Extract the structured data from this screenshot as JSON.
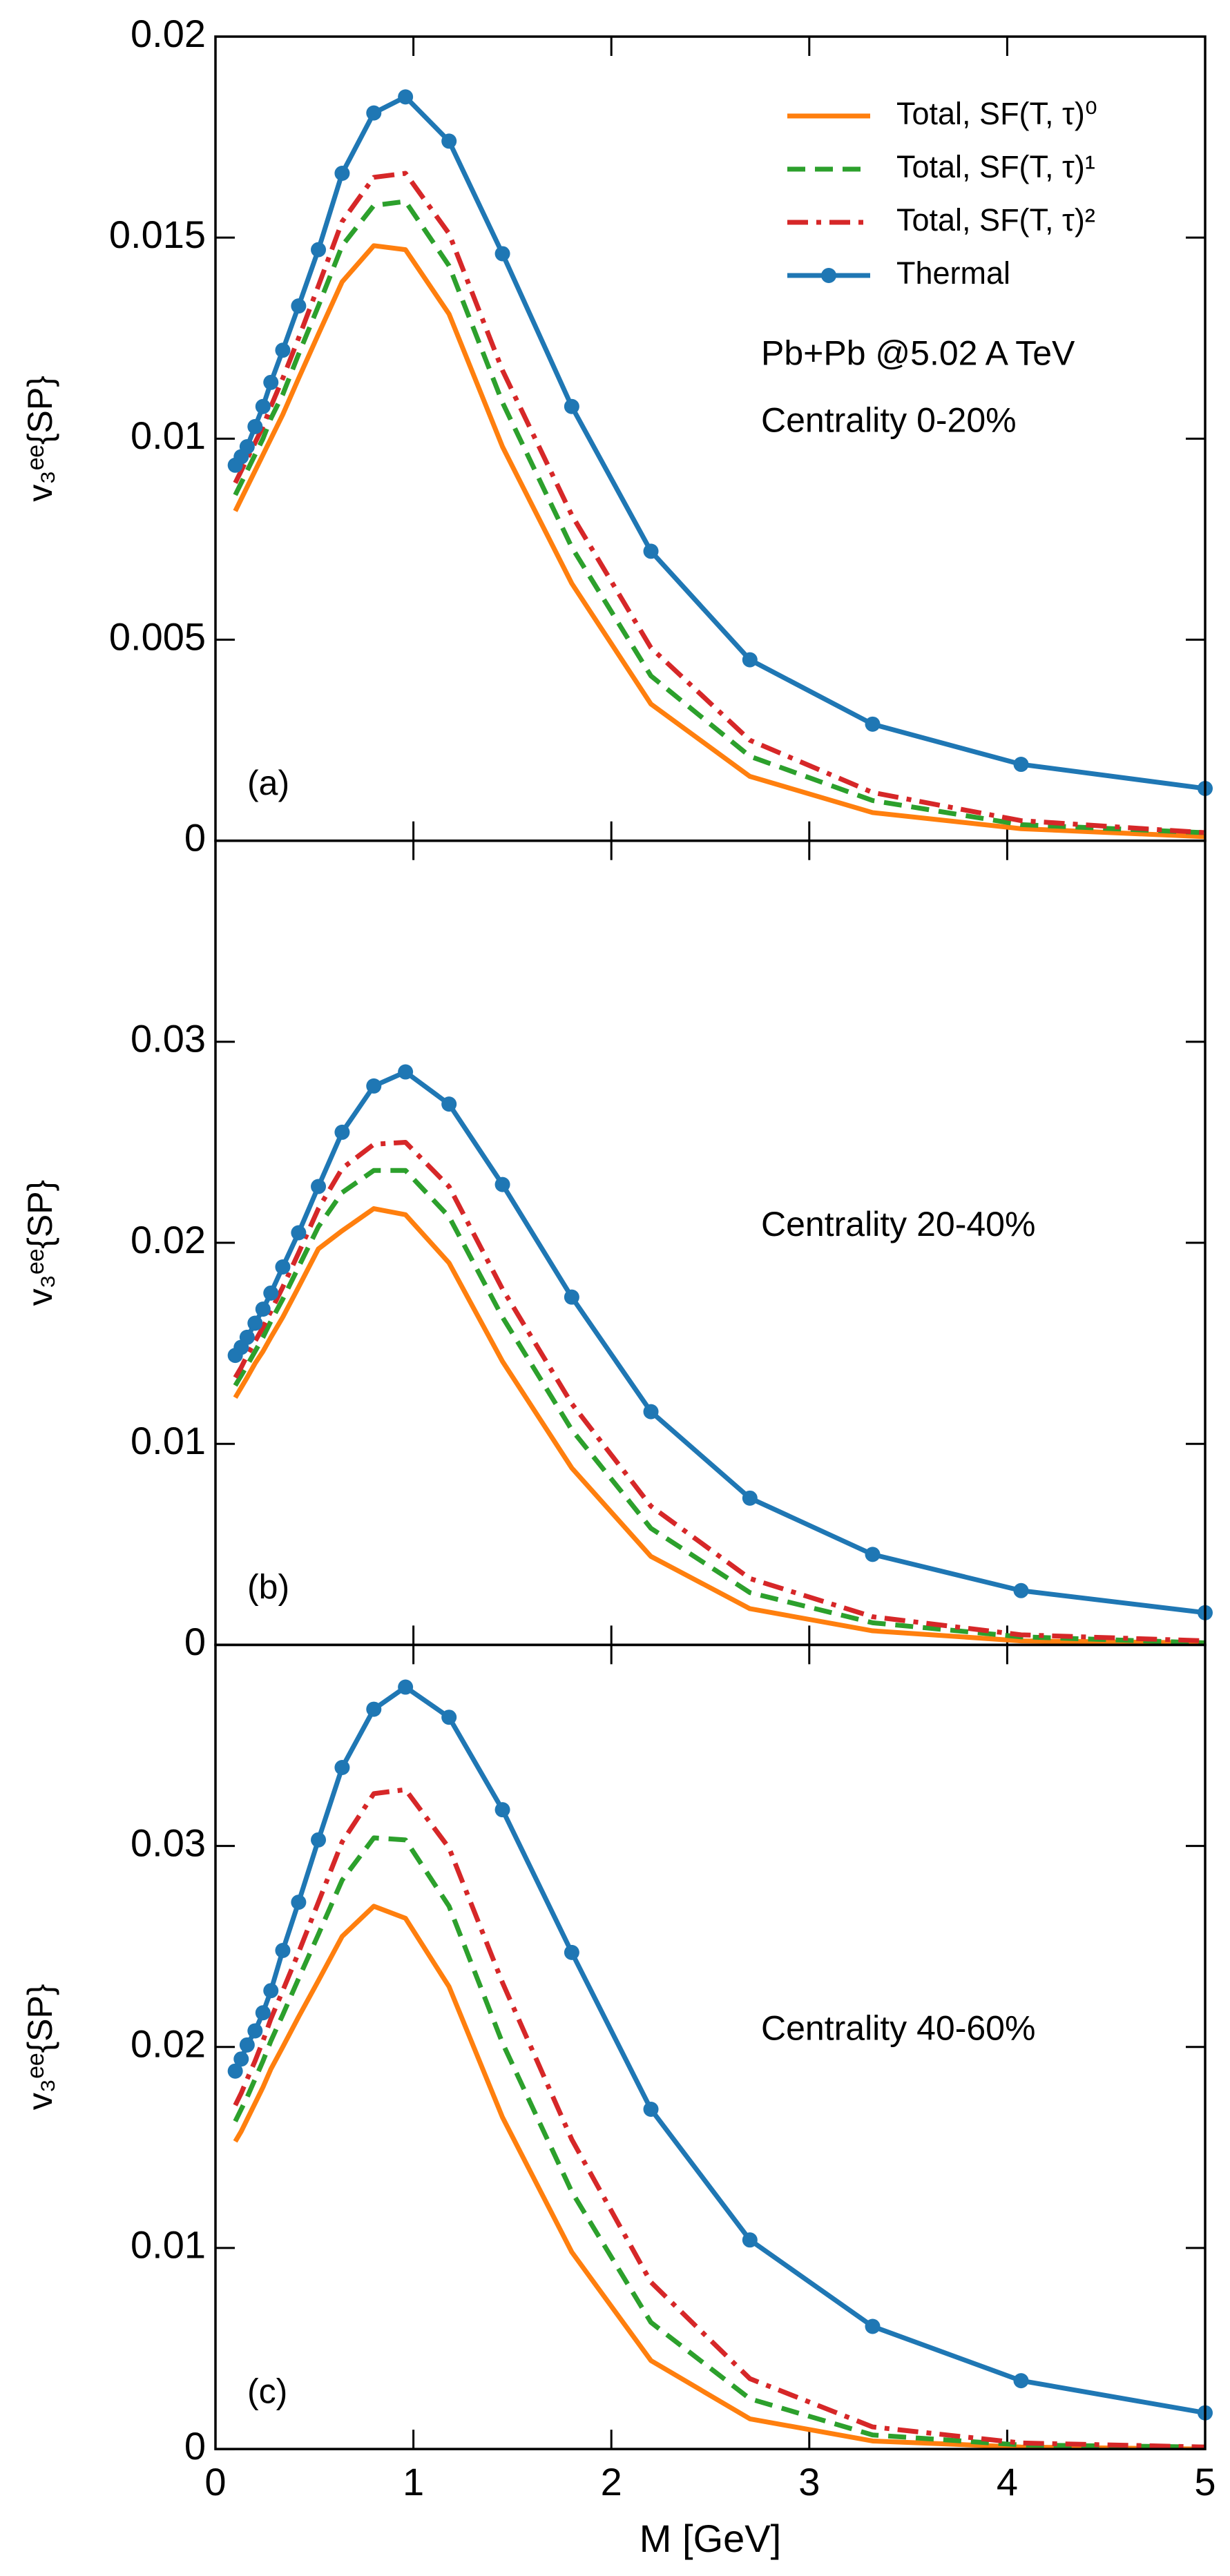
{
  "chart_data": [
    {
      "type": "line",
      "ylabel": "v₃ᵉᵉ{SP}",
      "annotations": [
        "Pb+Pb @5.02 A TeV",
        "Centrality 0-20%"
      ],
      "panel_label": "(a)",
      "x": [
        0.1,
        0.13,
        0.16,
        0.2,
        0.24,
        0.28,
        0.34,
        0.42,
        0.52,
        0.64,
        0.8,
        0.96,
        1.18,
        1.45,
        1.8,
        2.2,
        2.7,
        3.32,
        4.07,
        5.0
      ],
      "xlim": [
        0,
        5
      ],
      "xticks": [
        0,
        1,
        2,
        3,
        4,
        5
      ],
      "ylim": [
        0,
        0.02
      ],
      "yticks": [
        0,
        0.005,
        0.01,
        0.015,
        0.02
      ],
      "series": [
        {
          "name": "Total, SF(T, τ)⁰",
          "color": "#ff7f0e",
          "linestyle": "solid",
          "values": [
            0.0082,
            0.0085,
            0.0088,
            0.0092,
            0.0096,
            0.01,
            0.0106,
            0.0115,
            0.0126,
            0.0139,
            0.0148,
            0.0147,
            0.0131,
            0.0098,
            0.0064,
            0.0034,
            0.0016,
            0.0007,
            0.0003,
            0.0001
          ]
        },
        {
          "name": "Total, SF(T, τ)¹",
          "color": "#2ca02c",
          "linestyle": "dashed",
          "values": [
            0.0086,
            0.0089,
            0.0092,
            0.0096,
            0.01,
            0.0105,
            0.0111,
            0.0121,
            0.0133,
            0.0148,
            0.0158,
            0.0159,
            0.0143,
            0.0109,
            0.0073,
            0.0041,
            0.0021,
            0.001,
            0.0004,
            0.0002
          ]
        },
        {
          "name": "Total, SF(T, τ)²",
          "color": "#d62728",
          "linestyle": "dashdot",
          "values": [
            0.0089,
            0.0092,
            0.0095,
            0.0099,
            0.0103,
            0.0108,
            0.0115,
            0.0125,
            0.0138,
            0.0154,
            0.0165,
            0.0166,
            0.0151,
            0.0117,
            0.0081,
            0.0048,
            0.0025,
            0.0012,
            0.0005,
            0.0002
          ]
        },
        {
          "name": "Thermal",
          "color": "#1f77b4",
          "linestyle": "solid",
          "marker": "circle",
          "values": [
            0.00934,
            0.00955,
            0.0098,
            0.0103,
            0.0108,
            0.0114,
            0.0122,
            0.0133,
            0.0147,
            0.0166,
            0.0181,
            0.0185,
            0.0174,
            0.0146,
            0.0108,
            0.0072,
            0.0045,
            0.0029,
            0.0019,
            0.0013
          ]
        }
      ]
    },
    {
      "type": "line",
      "ylabel": "v₃ᵉᵉ{SP}",
      "annotations": [
        "Centrality 20-40%"
      ],
      "panel_label": "(b)",
      "x": [
        0.1,
        0.13,
        0.16,
        0.2,
        0.24,
        0.28,
        0.34,
        0.42,
        0.52,
        0.64,
        0.8,
        0.96,
        1.18,
        1.45,
        1.8,
        2.2,
        2.7,
        3.32,
        4.07,
        5.0
      ],
      "xlim": [
        0,
        5
      ],
      "xticks": [
        0,
        1,
        2,
        3,
        4,
        5
      ],
      "ylim": [
        0,
        0.04
      ],
      "yticks": [
        0,
        0.01,
        0.02,
        0.03
      ],
      "series": [
        {
          "color": "#ff7f0e",
          "linestyle": "solid",
          "values": [
            0.0123,
            0.0128,
            0.0133,
            0.014,
            0.0146,
            0.0153,
            0.0163,
            0.0178,
            0.0197,
            0.0206,
            0.0217,
            0.0214,
            0.019,
            0.0141,
            0.0088,
            0.0044,
            0.0018,
            0.0007,
            0.0002,
            0.0001
          ]
        },
        {
          "color": "#2ca02c",
          "linestyle": "dashed",
          "values": [
            0.0129,
            0.0134,
            0.0139,
            0.0146,
            0.0153,
            0.0161,
            0.0172,
            0.0188,
            0.0208,
            0.0225,
            0.0236,
            0.0236,
            0.0213,
            0.0163,
            0.0107,
            0.0058,
            0.0026,
            0.0011,
            0.0004,
            0.0001
          ]
        },
        {
          "color": "#d62728",
          "linestyle": "dashdot",
          "values": [
            0.0133,
            0.0138,
            0.0144,
            0.0151,
            0.0158,
            0.0166,
            0.0178,
            0.0195,
            0.0217,
            0.0237,
            0.0249,
            0.025,
            0.0228,
            0.0177,
            0.012,
            0.0069,
            0.0033,
            0.0014,
            0.0005,
            0.0002
          ]
        },
        {
          "color": "#1f77b4",
          "linestyle": "solid",
          "marker": "circle",
          "values": [
            0.0144,
            0.0148,
            0.0153,
            0.016,
            0.0167,
            0.0175,
            0.0188,
            0.0205,
            0.0228,
            0.0255,
            0.0278,
            0.0285,
            0.0269,
            0.0229,
            0.0173,
            0.0116,
            0.0073,
            0.0045,
            0.0027,
            0.0016
          ]
        }
      ]
    },
    {
      "type": "line",
      "ylabel": "v₃ᵉᵉ{SP}",
      "xlabel": "M [GeV]",
      "annotations": [
        "Centrality 40-60%"
      ],
      "panel_label": "(c)",
      "x": [
        0.1,
        0.13,
        0.16,
        0.2,
        0.24,
        0.28,
        0.34,
        0.42,
        0.52,
        0.64,
        0.8,
        0.96,
        1.18,
        1.45,
        1.8,
        2.2,
        2.7,
        3.32,
        4.07,
        5.0
      ],
      "xlim": [
        0,
        5
      ],
      "xticks": [
        0,
        1,
        2,
        3,
        4,
        5
      ],
      "ylim": [
        0,
        0.04
      ],
      "yticks": [
        0,
        0.01,
        0.02,
        0.03
      ],
      "series": [
        {
          "color": "#ff7f0e",
          "linestyle": "solid",
          "values": [
            0.0153,
            0.0158,
            0.0164,
            0.0172,
            0.018,
            0.0189,
            0.02,
            0.0215,
            0.0233,
            0.0255,
            0.027,
            0.0264,
            0.023,
            0.0165,
            0.0098,
            0.0044,
            0.0015,
            0.0004,
            0.0001,
            0
          ]
        },
        {
          "color": "#2ca02c",
          "linestyle": "dashed",
          "values": [
            0.0163,
            0.0169,
            0.0175,
            0.0184,
            0.0193,
            0.0203,
            0.0216,
            0.0234,
            0.0256,
            0.0283,
            0.0304,
            0.0303,
            0.027,
            0.0202,
            0.0128,
            0.0063,
            0.0025,
            0.0007,
            0.0002,
            0.0001
          ]
        },
        {
          "color": "#d62728",
          "linestyle": "dashdot",
          "values": [
            0.0171,
            0.0177,
            0.0184,
            0.0193,
            0.0203,
            0.0214,
            0.0228,
            0.0247,
            0.0272,
            0.0302,
            0.0326,
            0.0328,
            0.0299,
            0.0232,
            0.0154,
            0.0083,
            0.0035,
            0.0011,
            0.0003,
            0.0001
          ]
        },
        {
          "color": "#1f77b4",
          "linestyle": "solid",
          "marker": "circle",
          "values": [
            0.0188,
            0.0194,
            0.0201,
            0.0208,
            0.0217,
            0.0228,
            0.0248,
            0.0272,
            0.0303,
            0.0339,
            0.0368,
            0.0379,
            0.0364,
            0.0318,
            0.0247,
            0.0169,
            0.0104,
            0.0061,
            0.0034,
            0.0018
          ]
        }
      ]
    }
  ]
}
